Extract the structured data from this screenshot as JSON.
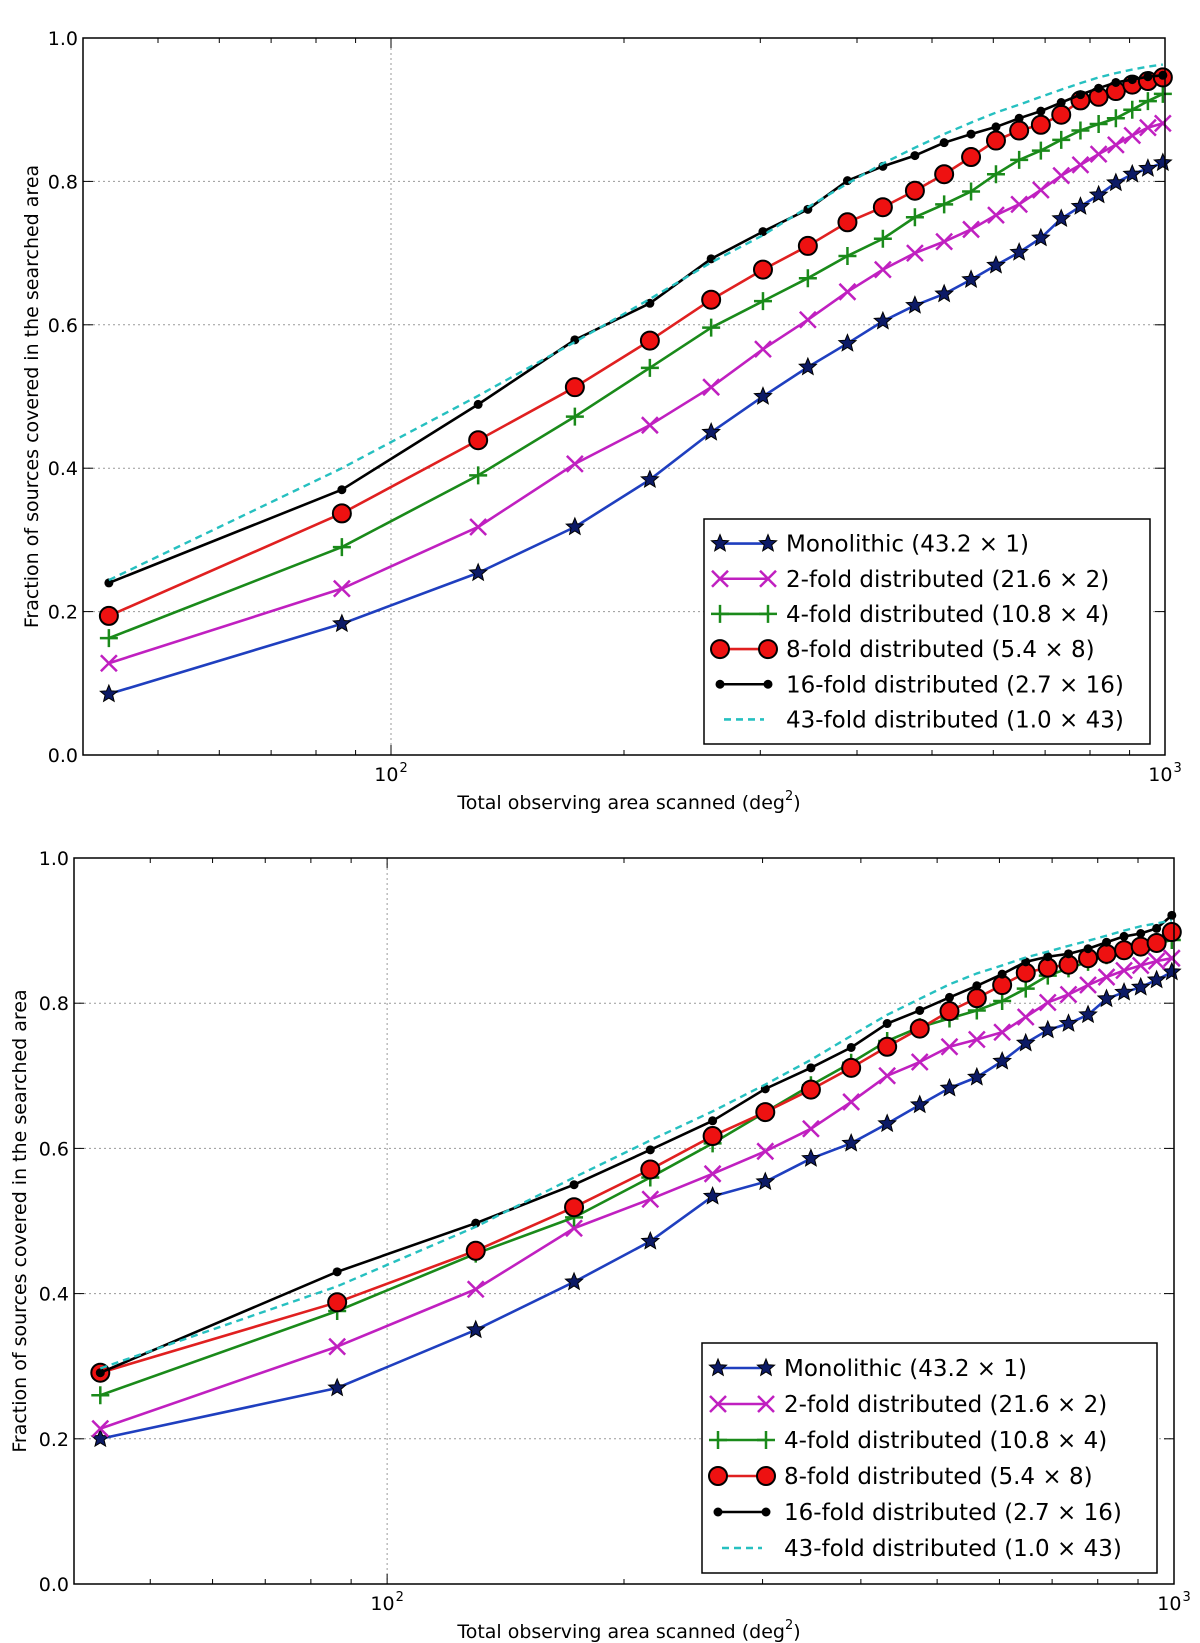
{
  "figure": {
    "background": "#ffffff"
  },
  "chart_data": [
    {
      "type": "line",
      "panel": "top",
      "xlabel": "Total observing area scanned (deg",
      "xlabel_sup": "2",
      "xlabel_close": ")",
      "ylabel": "Fraction of sources covered in the searched area",
      "xscale": "log",
      "xlim": [
        40,
        1000
      ],
      "ylim": [
        0.0,
        1.0
      ],
      "x_major_ticks": [
        100,
        1000
      ],
      "x_tick_labels": [
        "10",
        "10"
      ],
      "x_tick_exponents": [
        "2",
        "3"
      ],
      "y_ticks": [
        0.0,
        0.2,
        0.4,
        0.6,
        0.8,
        1.0
      ],
      "y_tick_labels": [
        "0.0",
        "0.2",
        "0.4",
        "0.6",
        "0.8",
        "1.0"
      ],
      "grid": true,
      "legend_position": "lower-right",
      "x": [
        43.2,
        86.4,
        129.6,
        172.8,
        216,
        259.2,
        302.4,
        345.6,
        388.8,
        432,
        475.2,
        518.4,
        561.6,
        604.8,
        648,
        691.2,
        734.4,
        777.6,
        820.8,
        864,
        907.2,
        950.4,
        993.6
      ],
      "series": [
        {
          "name": "Monolithic (43.2 × 1)",
          "color": "#1f3fbf",
          "marker": "star",
          "values": [
            0.085,
            0.183,
            0.254,
            0.318,
            0.384,
            0.45,
            0.5,
            0.541,
            0.574,
            0.605,
            0.627,
            0.643,
            0.663,
            0.683,
            0.701,
            0.721,
            0.748,
            0.765,
            0.781,
            0.798,
            0.81,
            0.818,
            0.826
          ]
        },
        {
          "name": "2-fold distributed (21.6 × 2)",
          "color": "#c020c0",
          "marker": "x",
          "values": [
            0.128,
            0.232,
            0.318,
            0.406,
            0.46,
            0.513,
            0.566,
            0.607,
            0.646,
            0.677,
            0.7,
            0.716,
            0.733,
            0.753,
            0.768,
            0.788,
            0.808,
            0.823,
            0.838,
            0.851,
            0.864,
            0.875,
            0.881
          ]
        },
        {
          "name": "4-fold distributed (10.8 × 4)",
          "color": "#1a8a1a",
          "marker": "plus",
          "values": [
            0.163,
            0.29,
            0.39,
            0.472,
            0.54,
            0.596,
            0.633,
            0.665,
            0.696,
            0.72,
            0.75,
            0.768,
            0.786,
            0.81,
            0.83,
            0.843,
            0.858,
            0.871,
            0.88,
            0.888,
            0.9,
            0.912,
            0.922
          ]
        },
        {
          "name": "8-fold distributed (5.4 × 8)",
          "color": "#e02020",
          "marker": "circle-red",
          "values": [
            0.194,
            0.337,
            0.439,
            0.513,
            0.578,
            0.635,
            0.677,
            0.71,
            0.743,
            0.764,
            0.787,
            0.81,
            0.834,
            0.857,
            0.871,
            0.879,
            0.893,
            0.913,
            0.918,
            0.926,
            0.935,
            0.94,
            0.945
          ]
        },
        {
          "name": "16-fold distributed (2.7 × 16)",
          "color": "#000000",
          "marker": "dot",
          "values": [
            0.24,
            0.37,
            0.489,
            0.579,
            0.63,
            0.692,
            0.73,
            0.761,
            0.801,
            0.821,
            0.836,
            0.854,
            0.866,
            0.876,
            0.888,
            0.898,
            0.91,
            0.921,
            0.93,
            0.938,
            0.942,
            0.946,
            0.948
          ]
        },
        {
          "name": "43-fold distributed (1.0 × 43)",
          "color": "#26c0c0",
          "marker": "none",
          "dashed": true,
          "values": [
            0.244,
            0.4,
            0.501,
            0.576,
            0.636,
            0.687,
            0.725,
            0.764,
            0.797,
            0.825,
            0.847,
            0.866,
            0.882,
            0.896,
            0.907,
            0.918,
            0.928,
            0.937,
            0.945,
            0.951,
            0.956,
            0.96,
            0.963
          ]
        }
      ]
    },
    {
      "type": "line",
      "panel": "bottom",
      "xlabel": "Total observing area scanned (deg",
      "xlabel_sup": "2",
      "xlabel_close": ")",
      "ylabel": "Fraction of sources covered in the searched area",
      "xscale": "log",
      "xlim": [
        40,
        1000
      ],
      "ylim": [
        0.0,
        1.0
      ],
      "x_major_ticks": [
        100,
        1000
      ],
      "x_tick_labels": [
        "10",
        "10"
      ],
      "x_tick_exponents": [
        "2",
        "3"
      ],
      "y_ticks": [
        0.0,
        0.2,
        0.4,
        0.6,
        0.8,
        1.0
      ],
      "y_tick_labels": [
        "0.0",
        "0.2",
        "0.4",
        "0.6",
        "0.8",
        "1.0"
      ],
      "grid": true,
      "legend_position": "lower-right",
      "x": [
        43.2,
        86.4,
        129.6,
        172.8,
        216,
        259.2,
        302.4,
        345.6,
        388.8,
        432,
        475.2,
        518.4,
        561.6,
        604.8,
        648,
        691.2,
        734.4,
        777.6,
        820.8,
        864,
        907.2,
        950.4,
        993.6
      ],
      "series": [
        {
          "name": "Monolithic (43.2 × 1)",
          "color": "#1f3fbf",
          "marker": "star",
          "values": [
            0.2,
            0.27,
            0.35,
            0.416,
            0.472,
            0.534,
            0.554,
            0.586,
            0.607,
            0.634,
            0.66,
            0.683,
            0.698,
            0.72,
            0.745,
            0.763,
            0.772,
            0.784,
            0.806,
            0.815,
            0.822,
            0.832,
            0.843
          ]
        },
        {
          "name": "2-fold distributed (21.6 × 2)",
          "color": "#c020c0",
          "marker": "x",
          "values": [
            0.214,
            0.327,
            0.406,
            0.49,
            0.53,
            0.565,
            0.596,
            0.627,
            0.664,
            0.7,
            0.719,
            0.74,
            0.75,
            0.76,
            0.781,
            0.801,
            0.812,
            0.825,
            0.836,
            0.845,
            0.852,
            0.858,
            0.862
          ]
        },
        {
          "name": "4-fold distributed (10.8 × 4)",
          "color": "#1a8a1a",
          "marker": "plus",
          "values": [
            0.26,
            0.376,
            0.455,
            0.505,
            0.56,
            0.607,
            0.65,
            0.687,
            0.718,
            0.748,
            0.767,
            0.779,
            0.79,
            0.803,
            0.82,
            0.838,
            0.848,
            0.857,
            0.866,
            0.872,
            0.877,
            0.882,
            0.887
          ]
        },
        {
          "name": "8-fold distributed (5.4 × 8)",
          "color": "#e02020",
          "marker": "circle-red",
          "values": [
            0.291,
            0.388,
            0.459,
            0.519,
            0.571,
            0.617,
            0.65,
            0.681,
            0.711,
            0.74,
            0.765,
            0.789,
            0.807,
            0.825,
            0.842,
            0.849,
            0.853,
            0.862,
            0.868,
            0.873,
            0.878,
            0.883,
            0.898
          ]
        },
        {
          "name": "16-fold distributed (2.7 × 16)",
          "color": "#000000",
          "marker": "dot",
          "values": [
            0.291,
            0.43,
            0.497,
            0.55,
            0.598,
            0.638,
            0.682,
            0.711,
            0.739,
            0.772,
            0.79,
            0.808,
            0.824,
            0.84,
            0.857,
            0.864,
            0.868,
            0.875,
            0.884,
            0.892,
            0.896,
            0.903,
            0.921
          ]
        },
        {
          "name": "43-fold distributed (1.0 × 43)",
          "color": "#26c0c0",
          "marker": "none",
          "dashed": true,
          "values": [
            0.297,
            0.41,
            0.492,
            0.56,
            0.611,
            0.651,
            0.688,
            0.722,
            0.755,
            0.784,
            0.806,
            0.826,
            0.841,
            0.852,
            0.863,
            0.871,
            0.879,
            0.886,
            0.893,
            0.9,
            0.906,
            0.91,
            0.914
          ]
        }
      ]
    }
  ]
}
